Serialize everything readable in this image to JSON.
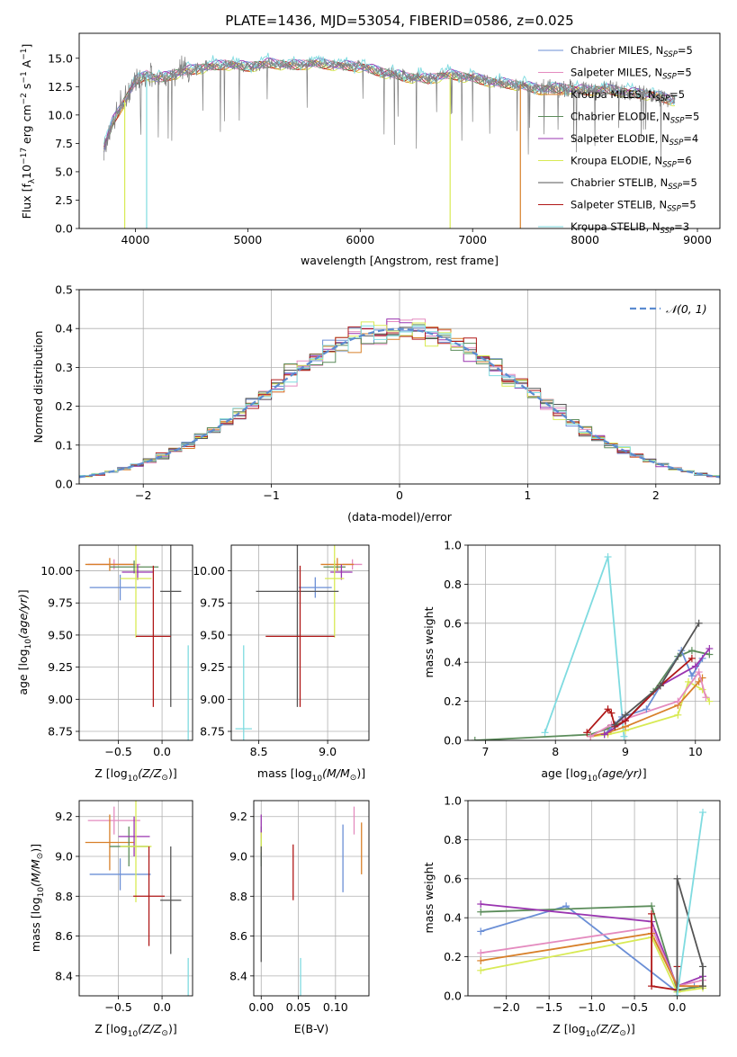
{
  "colors": {
    "chabrier_miles": "#6b8fd6",
    "salpeter_miles": "#e48bbf",
    "kroupa_miles": "#d8802a",
    "chabrier_elodie": "#5b8c5a",
    "salpeter_elodie": "#9a35b0",
    "kroupa_elodie": "#d8ea55",
    "chabrier_stelib": "#555555",
    "salpeter_stelib": "#b01818",
    "kroupa_stelib": "#7fdbe0",
    "normal": "#5b8bd0",
    "grid": "#b0b0b0"
  },
  "chart_data": [
    {
      "id": "spectrum",
      "type": "line",
      "title": "PLATE=1436, MJD=53054, FIBERID=0586, z=0.025",
      "xlabel": "wavelength [Angstrom, rest frame]",
      "ylabel": "Flux [f_λ 10^-17 erg cm^-2 s^-1 A^-1]",
      "xlim": [
        3500,
        9200
      ],
      "ylim": [
        0,
        17.2
      ],
      "xticks": [
        4000,
        5000,
        6000,
        7000,
        8000,
        9000
      ],
      "yticks": [
        0.0,
        2.5,
        5.0,
        7.5,
        10.0,
        12.5,
        15.0
      ],
      "legend_position": "top-right",
      "legend": [
        {
          "label": "Chabrier MILES, N",
          "sub": "SSP",
          "suffix": "=5",
          "color": "chabrier_miles"
        },
        {
          "label": "Salpeter MILES, N",
          "sub": "SSP",
          "suffix": "=5",
          "color": "salpeter_miles"
        },
        {
          "label": "Kroupa MILES, N",
          "sub": "SSP",
          "suffix": "=5",
          "color": "kroupa_miles"
        },
        {
          "label": "Chabrier ELODIE, N",
          "sub": "SSP",
          "suffix": "=5",
          "color": "chabrier_elodie"
        },
        {
          "label": "Salpeter ELODIE, N",
          "sub": "SSP",
          "suffix": "=4",
          "color": "salpeter_elodie"
        },
        {
          "label": "Kroupa ELODIE, N",
          "sub": "SSP",
          "suffix": "=6",
          "color": "kroupa_elodie"
        },
        {
          "label": "Chabrier STELIB, N",
          "sub": "SSP",
          "suffix": "=5",
          "color": "chabrier_stelib"
        },
        {
          "label": "Salpeter STELIB, N",
          "sub": "SSP",
          "suffix": "=5",
          "color": "salpeter_stelib"
        },
        {
          "label": "Kroupa STELIB, N",
          "sub": "SSP",
          "suffix": "=3",
          "color": "kroupa_stelib"
        }
      ],
      "continuum": {
        "x": [
          3720,
          3800,
          3900,
          4000,
          4100,
          4200,
          4400,
          4600,
          4800,
          5000,
          5200,
          5400,
          5600,
          5800,
          6000,
          6200,
          6400,
          6600,
          6800,
          7000,
          7200,
          7400,
          7600,
          7800,
          8000,
          8200,
          8400,
          8600,
          8800
        ],
        "y": [
          7.0,
          9.5,
          11.2,
          13.0,
          13.6,
          13.2,
          13.8,
          14.2,
          14.5,
          14.3,
          14.6,
          14.4,
          14.6,
          14.4,
          14.3,
          13.8,
          13.4,
          13.2,
          13.6,
          13.3,
          12.9,
          12.7,
          12.3,
          12.4,
          12.2,
          12.3,
          12.0,
          11.8,
          11.3
        ]
      },
      "dropouts": [
        {
          "x": 3905,
          "y": 0.0,
          "series": "kroupa_elodie"
        },
        {
          "x": 4100,
          "y": 0.0,
          "series": "kroupa_stelib"
        },
        {
          "x": 6800,
          "y": 0.0,
          "series": "kroupa_elodie"
        },
        {
          "x": 7425,
          "y": 0.0,
          "series": "kroupa_miles"
        }
      ]
    },
    {
      "id": "residuals",
      "type": "histogram",
      "xlabel": "(data-model)/error",
      "ylabel": "Normed distribution",
      "xlim": [
        -2.5,
        2.5
      ],
      "ylim": [
        0,
        0.5
      ],
      "xticks": [
        -2,
        -1,
        0,
        1,
        2
      ],
      "yticks": [
        0.0,
        0.1,
        0.2,
        0.3,
        0.4,
        0.5
      ],
      "legend_position": "top-right",
      "normal_label": "𝒩(0, 1)",
      "bin_width": 0.1
    },
    {
      "id": "age_vs_Z",
      "type": "errorbar",
      "xlabel": "Z [log10(Z/Z⊙)]",
      "ylabel": "age  [log10(age/yr)]",
      "xlim": [
        -0.95,
        0.35
      ],
      "ylim": [
        8.68,
        10.2
      ],
      "xticks": [
        -0.5,
        0.0
      ],
      "yticks": [
        8.75,
        9.0,
        9.25,
        9.5,
        9.75,
        10.0
      ],
      "points": [
        {
          "series": "chabrier_miles",
          "x": -0.48,
          "y": 9.87,
          "xerr": 0.35,
          "yerr": 0.1
        },
        {
          "series": "salpeter_miles",
          "x": -0.55,
          "y": 10.05,
          "xerr": 0.3,
          "yerr": 0.04
        },
        {
          "series": "kroupa_miles",
          "x": -0.6,
          "y": 10.05,
          "xerr": 0.28,
          "yerr": 0.05
        },
        {
          "series": "chabrier_elodie",
          "x": -0.32,
          "y": 10.03,
          "xerr": 0.28,
          "yerr": 0.05
        },
        {
          "series": "salpeter_elodie",
          "x": -0.28,
          "y": 9.99,
          "xerr": 0.18,
          "yerr": 0.06
        },
        {
          "series": "kroupa_elodie",
          "x": -0.3,
          "y": 9.94,
          "xerr": 0.18,
          "yerr": 0.46
        },
        {
          "series": "chabrier_stelib",
          "x": 0.1,
          "y": 9.84,
          "xerr": 0.12,
          "yerr": 0.9
        },
        {
          "series": "salpeter_stelib",
          "x": -0.1,
          "y": 9.49,
          "xerr": 0.2,
          "yerr": 0.55
        },
        {
          "series": "kroupa_stelib",
          "x": 0.3,
          "y": 8.77,
          "xerr": 0.0,
          "yerr": 0.65
        }
      ]
    },
    {
      "id": "age_vs_mass",
      "type": "errorbar",
      "xlabel": "mass [log10(M/M⊙)]",
      "ylabel": "",
      "xlim": [
        8.3,
        9.3
      ],
      "ylim": [
        8.68,
        10.2
      ],
      "xticks": [
        8.5,
        9.0
      ],
      "yticks": [
        8.75,
        9.0,
        9.25,
        9.5,
        9.75,
        10.0
      ],
      "points": [
        {
          "series": "chabrier_miles",
          "x": 8.91,
          "y": 9.87,
          "xerr": 0.12,
          "yerr": 0.08
        },
        {
          "series": "salpeter_miles",
          "x": 9.18,
          "y": 10.05,
          "xerr": 0.07,
          "yerr": 0.04
        },
        {
          "series": "kroupa_miles",
          "x": 9.07,
          "y": 10.05,
          "xerr": 0.12,
          "yerr": 0.05
        },
        {
          "series": "chabrier_elodie",
          "x": 9.05,
          "y": 10.03,
          "xerr": 0.08,
          "yerr": 0.05
        },
        {
          "series": "salpeter_elodie",
          "x": 9.1,
          "y": 9.99,
          "xerr": 0.08,
          "yerr": 0.06
        },
        {
          "series": "kroupa_elodie",
          "x": 9.05,
          "y": 9.94,
          "xerr": 0.07,
          "yerr": 0.46
        },
        {
          "series": "chabrier_stelib",
          "x": 8.78,
          "y": 9.84,
          "xerr": 0.3,
          "yerr": 0.9
        },
        {
          "series": "salpeter_stelib",
          "x": 8.8,
          "y": 9.49,
          "xerr": 0.25,
          "yerr": 0.55
        },
        {
          "series": "kroupa_stelib",
          "x": 8.39,
          "y": 8.77,
          "xerr": 0.06,
          "yerr": 0.65
        }
      ]
    },
    {
      "id": "weight_vs_age",
      "type": "line",
      "xlabel": "age  [log10(age/yr)]",
      "ylabel": "mass weight",
      "xlim": [
        6.75,
        10.35
      ],
      "ylim": [
        0,
        1.0
      ],
      "xticks": [
        7,
        8,
        9,
        10
      ],
      "yticks": [
        0.0,
        0.2,
        0.4,
        0.6,
        0.8,
        1.0
      ],
      "series": [
        {
          "series": "kroupa_stelib",
          "x": [
            7.85,
            8.75,
            8.98
          ],
          "y": [
            0.04,
            0.94,
            0.02
          ]
        },
        {
          "series": "chabrier_elodie",
          "x": [
            6.85,
            8.5,
            8.75,
            9.0,
            9.4,
            9.75,
            9.95,
            10.2
          ],
          "y": [
            0.0,
            0.03,
            0.06,
            0.1,
            0.25,
            0.43,
            0.46,
            0.44
          ]
        },
        {
          "series": "kroupa_elodie",
          "x": [
            8.5,
            8.75,
            9.0,
            9.75,
            9.9,
            10.1,
            10.2
          ],
          "y": [
            0.02,
            0.03,
            0.05,
            0.13,
            0.3,
            0.26,
            0.2
          ]
        },
        {
          "series": "kroupa_miles",
          "x": [
            8.5,
            8.75,
            9.0,
            9.75,
            10.05,
            10.1
          ],
          "y": [
            0.02,
            0.04,
            0.07,
            0.18,
            0.3,
            0.32
          ]
        },
        {
          "series": "salpeter_miles",
          "x": [
            8.5,
            8.8,
            9.0,
            9.75,
            10.05,
            10.15
          ],
          "y": [
            0.02,
            0.08,
            0.11,
            0.2,
            0.35,
            0.22
          ]
        },
        {
          "series": "chabrier_miles",
          "x": [
            8.7,
            8.95,
            9.3,
            9.8,
            9.95,
            10.1
          ],
          "y": [
            0.03,
            0.12,
            0.16,
            0.46,
            0.33,
            0.42
          ]
        },
        {
          "series": "salpeter_elodie",
          "x": [
            8.7,
            9.0,
            9.5,
            10.0,
            10.2
          ],
          "y": [
            0.03,
            0.1,
            0.28,
            0.38,
            0.47
          ]
        },
        {
          "series": "salpeter_stelib",
          "x": [
            8.45,
            8.75,
            8.8,
            8.85,
            9.0,
            9.5,
            9.95
          ],
          "y": [
            0.04,
            0.16,
            0.14,
            0.07,
            0.1,
            0.28,
            0.42
          ]
        },
        {
          "series": "chabrier_stelib",
          "x": [
            8.85,
            9.0,
            9.5,
            10.05
          ],
          "y": [
            0.08,
            0.13,
            0.28,
            0.6
          ]
        }
      ]
    },
    {
      "id": "mass_vs_Z",
      "type": "errorbar",
      "xlabel": "Z [log10(Z/Z⊙)]",
      "ylabel": "mass [log10(M/M⊙)]",
      "xlim": [
        -0.95,
        0.35
      ],
      "ylim": [
        8.3,
        9.28
      ],
      "xticks": [
        -0.5,
        0.0
      ],
      "yticks": [
        8.4,
        8.6,
        8.8,
        9.0,
        9.2
      ],
      "points": [
        {
          "series": "chabrier_miles",
          "x": -0.48,
          "y": 8.91,
          "xerr": 0.35,
          "yerr": 0.08
        },
        {
          "series": "salpeter_miles",
          "x": -0.55,
          "y": 9.18,
          "xerr": 0.3,
          "yerr": 0.07
        },
        {
          "series": "kroupa_miles",
          "x": -0.6,
          "y": 9.07,
          "xerr": 0.28,
          "yerr": 0.14
        },
        {
          "series": "chabrier_elodie",
          "x": -0.38,
          "y": 9.05,
          "xerr": 0.22,
          "yerr": 0.1
        },
        {
          "series": "salpeter_elodie",
          "x": -0.32,
          "y": 9.1,
          "xerr": 0.18,
          "yerr": 0.1
        },
        {
          "series": "kroupa_elodie",
          "x": -0.3,
          "y": 9.05,
          "xerr": 0.18,
          "yerr": 0.28
        },
        {
          "series": "chabrier_stelib",
          "x": 0.1,
          "y": 8.78,
          "xerr": 0.12,
          "yerr": 0.27
        },
        {
          "series": "salpeter_stelib",
          "x": -0.15,
          "y": 8.8,
          "xerr": 0.18,
          "yerr": 0.25
        },
        {
          "series": "kroupa_stelib",
          "x": 0.3,
          "y": 8.39,
          "xerr": 0.0,
          "yerr": 0.1
        }
      ]
    },
    {
      "id": "mass_vs_ebv",
      "type": "errorbar",
      "xlabel": "E(B-V)",
      "ylabel": "",
      "xlim": [
        -0.01,
        0.145
      ],
      "ylim": [
        8.3,
        9.28
      ],
      "xticks": [
        0.0,
        0.05,
        0.1
      ],
      "yticks": [
        8.4,
        8.6,
        8.8,
        9.0,
        9.2
      ],
      "points": [
        {
          "series": "chabrier_miles",
          "x": 0.11,
          "y": 8.99,
          "xerr": 0.0,
          "yerr": 0.17
        },
        {
          "series": "salpeter_miles",
          "x": 0.125,
          "y": 9.18,
          "xerr": 0.0,
          "yerr": 0.07
        },
        {
          "series": "kroupa_miles",
          "x": 0.135,
          "y": 9.04,
          "xerr": 0.0,
          "yerr": 0.13
        },
        {
          "series": "chabrier_elodie",
          "x": 0.0,
          "y": 9.05,
          "xerr": 0.0,
          "yerr": 0.1
        },
        {
          "series": "salpeter_elodie",
          "x": 0.0,
          "y": 9.15,
          "xerr": 0.0,
          "yerr": 0.06
        },
        {
          "series": "kroupa_elodie",
          "x": 0.0,
          "y": 9.07,
          "xerr": 0.0,
          "yerr": 0.05
        },
        {
          "series": "chabrier_stelib",
          "x": 0.0,
          "y": 8.76,
          "xerr": 0.0,
          "yerr": 0.29
        },
        {
          "series": "salpeter_stelib",
          "x": 0.043,
          "y": 8.92,
          "xerr": 0.0,
          "yerr": 0.14
        },
        {
          "series": "kroupa_stelib",
          "x": 0.053,
          "y": 8.36,
          "xerr": 0.0,
          "yerr": 0.13
        }
      ]
    },
    {
      "id": "weight_vs_Z",
      "type": "line",
      "xlabel": "Z [log10(Z/Z⊙)]",
      "ylabel": "mass weight",
      "xlim": [
        -2.45,
        0.5
      ],
      "ylim": [
        0,
        1.0
      ],
      "xticks": [
        -2.0,
        -1.5,
        -1.0,
        -0.5,
        0.0
      ],
      "yticks": [
        0.0,
        0.2,
        0.4,
        0.6,
        0.8,
        1.0
      ],
      "series": [
        {
          "series": "chabrier_miles",
          "x": [
            -2.3,
            -1.3,
            0.0,
            0.2
          ],
          "y": [
            0.33,
            0.46,
            0.02,
            0.05
          ]
        },
        {
          "series": "chabrier_elodie",
          "x": [
            -2.3,
            -0.3,
            0.0,
            0.3
          ],
          "y": [
            0.43,
            0.46,
            0.03,
            0.05
          ]
        },
        {
          "series": "salpeter_elodie",
          "x": [
            -2.3,
            -0.3,
            0.0,
            0.3
          ],
          "y": [
            0.47,
            0.38,
            0.05,
            0.1
          ]
        },
        {
          "series": "salpeter_miles",
          "x": [
            -2.3,
            -0.3,
            0.0,
            0.3
          ],
          "y": [
            0.22,
            0.35,
            0.05,
            0.08
          ]
        },
        {
          "series": "kroupa_miles",
          "x": [
            -2.3,
            -0.3,
            0.0,
            0.3
          ],
          "y": [
            0.18,
            0.32,
            0.05,
            0.05
          ]
        },
        {
          "series": "kroupa_elodie",
          "x": [
            -2.3,
            -0.3,
            0.0,
            0.3
          ],
          "y": [
            0.13,
            0.3,
            0.02,
            0.04
          ]
        },
        {
          "series": "salpeter_stelib",
          "x": [
            -0.3,
            -0.3,
            0.0,
            0.0
          ],
          "y": [
            0.42,
            0.05,
            0.03,
            0.15
          ]
        },
        {
          "series": "chabrier_stelib",
          "x": [
            0.0,
            0.0,
            0.3,
            0.3
          ],
          "y": [
            0.0,
            0.6,
            0.15,
            0.05
          ]
        },
        {
          "series": "kroupa_stelib",
          "x": [
            0.0,
            0.3
          ],
          "y": [
            0.0,
            0.94
          ]
        }
      ]
    }
  ]
}
